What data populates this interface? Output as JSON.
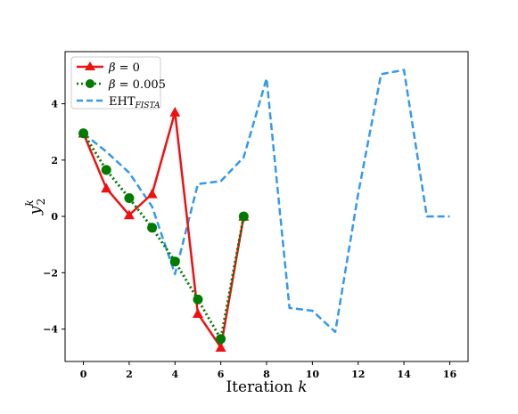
{
  "chart_data": {
    "type": "line",
    "xlabel": "Iteration k",
    "ylabel": "y_2^k",
    "xlim": [
      -0.8,
      16.8
    ],
    "ylim": [
      -5.15,
      5.85
    ],
    "xticks": [
      0,
      2,
      4,
      6,
      8,
      10,
      12,
      14,
      16
    ],
    "yticks": [
      -4,
      -2,
      0,
      2,
      4
    ],
    "legend_placement": "top-left",
    "grid": false,
    "series": [
      {
        "name": "β = 0",
        "color": "#ee1111",
        "style": "solid",
        "marker": "triangle",
        "x": [
          0,
          1,
          2,
          3,
          4,
          5,
          6,
          7
        ],
        "y": [
          2.95,
          1.0,
          0.05,
          0.8,
          3.7,
          -3.45,
          -4.65,
          0.0
        ]
      },
      {
        "name": "β = 0.005",
        "color": "#007a00",
        "style": "dotted",
        "marker": "circle",
        "x": [
          0,
          1,
          2,
          3,
          4,
          5,
          6,
          7
        ],
        "y": [
          2.95,
          1.65,
          0.65,
          -0.4,
          -1.6,
          -2.95,
          -4.35,
          0.0
        ]
      },
      {
        "name": "EHT_FISTA",
        "color": "#3399ee",
        "style": "dashed",
        "marker": "none",
        "x": [
          0,
          1,
          2,
          3,
          4,
          5,
          6,
          7,
          8,
          9,
          10,
          11,
          12,
          13,
          14,
          15,
          16
        ],
        "y": [
          2.95,
          2.3,
          1.55,
          0.35,
          -2.05,
          1.15,
          1.25,
          2.1,
          4.9,
          -3.25,
          -3.35,
          -4.1,
          0.8,
          5.05,
          5.2,
          0.0,
          0.0
        ]
      }
    ]
  }
}
